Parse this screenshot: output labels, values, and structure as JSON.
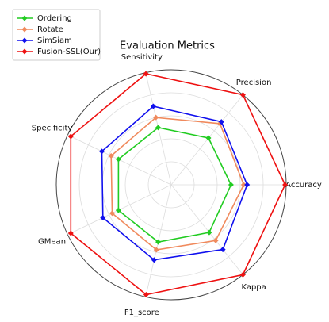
{
  "chart_data": {
    "type": "radar",
    "title": "Evaluation Metrics",
    "categories": [
      "Accuracy",
      "Precision",
      "Sensitivity",
      "Specificity",
      "GMean",
      "F1_score",
      "Kappa"
    ],
    "series": [
      {
        "name": "Ordering",
        "color": "#22cc22",
        "values": [
          0.52,
          0.52,
          0.51,
          0.51,
          0.51,
          0.51,
          0.53
        ]
      },
      {
        "name": "Rotate",
        "color": "#f08a5d",
        "values": [
          0.63,
          0.68,
          0.6,
          0.58,
          0.57,
          0.58,
          0.62
        ]
      },
      {
        "name": "SimSiam",
        "color": "#1010ee",
        "values": [
          0.66,
          0.7,
          0.7,
          0.67,
          0.66,
          0.67,
          0.72
        ]
      },
      {
        "name": "Fusion-SSL(Our)",
        "color": "#ee1111",
        "values": [
          0.99,
          1.0,
          0.99,
          0.97,
          0.97,
          0.98,
          1.0
        ]
      }
    ],
    "ylim": [
      0,
      1
    ],
    "yticks": [
      0.2,
      0.4,
      0.6,
      0.8,
      1.0
    ],
    "grid": true,
    "legend": "upper left"
  }
}
